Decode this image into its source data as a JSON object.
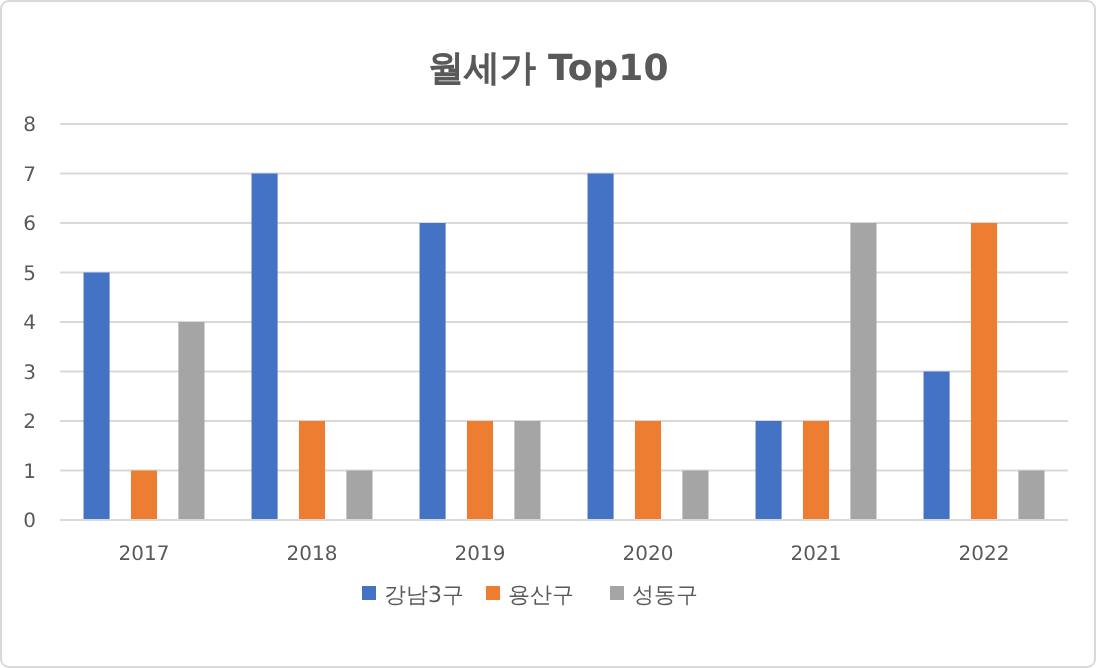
{
  "chart_data": {
    "type": "bar",
    "title": "월세가 Top10",
    "categories": [
      "2017",
      "2018",
      "2019",
      "2020",
      "2021",
      "2022"
    ],
    "series": [
      {
        "name": "강남3구",
        "color": "#4472c4",
        "values": [
          5,
          7,
          6,
          7,
          2,
          3
        ]
      },
      {
        "name": "용산구",
        "color": "#ed7d31",
        "values": [
          1,
          2,
          2,
          2,
          2,
          6
        ]
      },
      {
        "name": "성동구",
        "color": "#a5a5a5",
        "values": [
          4,
          1,
          2,
          1,
          6,
          1
        ]
      }
    ],
    "ylim": [
      0,
      8
    ],
    "yticks": [
      0,
      1,
      2,
      3,
      4,
      5,
      6,
      7,
      8
    ],
    "grid": "y",
    "legend": "bottom"
  }
}
